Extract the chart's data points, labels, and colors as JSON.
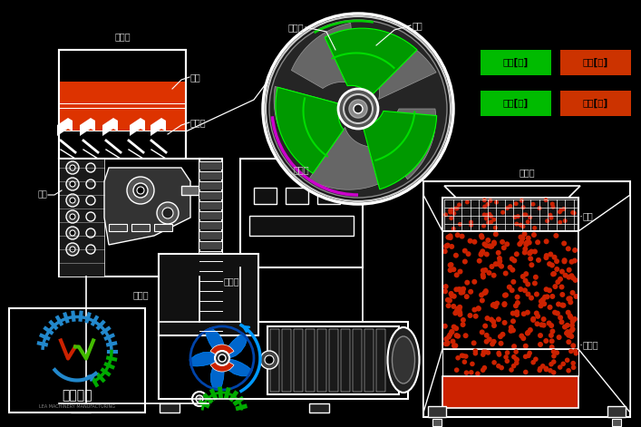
{
  "bg_color": "#000000",
  "white": "#ffffff",
  "red": "#cc2200",
  "green_btn": "#00bb00",
  "red_btn": "#cc2200",
  "text_color": "#cccccc",
  "label_jialiaokou_1": "加料口",
  "label_shajian": "筛筒",
  "label_yalijie": "压料叶",
  "label_gunjian": "滚刀",
  "label_chuliaochu": "出料槽",
  "label_bianjianqi": "变频器",
  "label_jiansujiji": "减速机",
  "label_gunjian2": "滚刀",
  "label_jialiaokai": "加料[开]",
  "label_jialiaoguai": "加料[关]",
  "label_zhiliaokai": "制粒[开]",
  "label_zhiliaoguai": "制粒[关]",
  "label_jialiaokou_2": "加料口",
  "label_shajian2": "筛筒",
  "label_chuliaochu2": "出料槽",
  "logo_text1": "乐马机械",
  "logo_text2": "LEA MACHINERY MANUFACTURING"
}
